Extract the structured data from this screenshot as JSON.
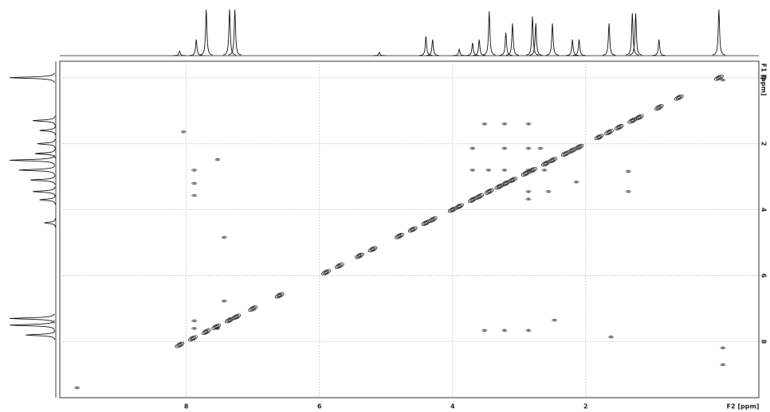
{
  "chart_data": {
    "type": "contour",
    "x_label": "F2 [ppm]",
    "y_label": "F1 [ppm]",
    "xlim": [
      9.9,
      -0.6
    ],
    "xticks": [
      8,
      6,
      4,
      2
    ],
    "ylim": [
      -0.5,
      9.7
    ],
    "yticks": [
      0,
      2,
      4,
      6,
      8
    ],
    "grid": true,
    "color": "#111111",
    "diagonal": [
      8.1,
      7.9,
      7.7,
      7.55,
      7.35,
      7.25,
      7.0,
      6.6,
      5.9,
      5.7,
      5.4,
      5.2,
      4.8,
      4.6,
      4.4,
      4.3,
      4.0,
      3.9,
      3.7,
      3.6,
      3.45,
      3.3,
      3.2,
      3.1,
      2.9,
      2.8,
      2.6,
      2.5,
      2.3,
      2.2,
      2.1,
      1.8,
      1.65,
      1.5,
      1.3,
      1.2,
      0.9,
      0.6,
      0.0
    ],
    "cross_peaks": [
      {
        "x": 8.04,
        "y": 1.64
      },
      {
        "x": 7.88,
        "y": 2.8
      },
      {
        "x": 7.88,
        "y": 3.2
      },
      {
        "x": 7.88,
        "y": 3.57
      },
      {
        "x": 7.53,
        "y": 2.48
      },
      {
        "x": 7.43,
        "y": 4.84
      },
      {
        "x": 7.43,
        "y": 6.77
      },
      {
        "x": 7.53,
        "y": 7.6
      },
      {
        "x": 7.88,
        "y": 7.37
      },
      {
        "x": 7.88,
        "y": 7.6
      },
      {
        "x": 3.52,
        "y": 1.4
      },
      {
        "x": 3.22,
        "y": 1.4
      },
      {
        "x": 2.86,
        "y": 1.4
      },
      {
        "x": 3.7,
        "y": 2.14
      },
      {
        "x": 3.22,
        "y": 2.14
      },
      {
        "x": 2.86,
        "y": 2.14
      },
      {
        "x": 2.68,
        "y": 2.14
      },
      {
        "x": 3.7,
        "y": 2.8
      },
      {
        "x": 3.46,
        "y": 2.8
      },
      {
        "x": 3.22,
        "y": 2.8
      },
      {
        "x": 2.86,
        "y": 2.8
      },
      {
        "x": 2.62,
        "y": 2.8
      },
      {
        "x": 2.86,
        "y": 3.45
      },
      {
        "x": 2.86,
        "y": 3.68
      },
      {
        "x": 2.56,
        "y": 3.45
      },
      {
        "x": 2.14,
        "y": 3.16
      },
      {
        "x": 1.36,
        "y": 2.84
      },
      {
        "x": 1.36,
        "y": 3.45
      },
      {
        "x": 2.47,
        "y": 7.35
      },
      {
        "x": 3.52,
        "y": 7.66
      },
      {
        "x": 3.22,
        "y": 7.66
      },
      {
        "x": 2.86,
        "y": 7.66
      },
      {
        "x": 1.62,
        "y": 7.86
      },
      {
        "x": -0.06,
        "y": 0.07
      },
      {
        "x": -0.06,
        "y": 8.19
      },
      {
        "x": -0.06,
        "y": 8.7
      },
      {
        "x": 9.64,
        "y": 9.4
      }
    ],
    "f2_projection": {
      "ppm": [
        8.1,
        7.85,
        7.7,
        7.35,
        7.27,
        5.1,
        4.4,
        4.3,
        3.9,
        3.7,
        3.6,
        3.45,
        3.2,
        3.1,
        2.8,
        2.75,
        2.5,
        2.2,
        2.1,
        1.65,
        1.3,
        1.25,
        0.9,
        0.0
      ],
      "intensity": [
        10,
        35,
        100,
        100,
        100,
        7,
        42,
        35,
        14,
        28,
        35,
        96,
        50,
        70,
        85,
        70,
        70,
        35,
        35,
        70,
        92,
        92,
        35,
        100
      ]
    },
    "f1_projection": {
      "ppm": [
        0.0,
        1.3,
        1.6,
        2.0,
        2.3,
        2.5,
        2.8,
        3.1,
        3.45,
        3.7,
        4.4,
        7.3,
        7.5,
        7.8
      ],
      "intensity": [
        100,
        50,
        35,
        40,
        45,
        100,
        80,
        55,
        50,
        35,
        25,
        100,
        100,
        65
      ]
    }
  }
}
